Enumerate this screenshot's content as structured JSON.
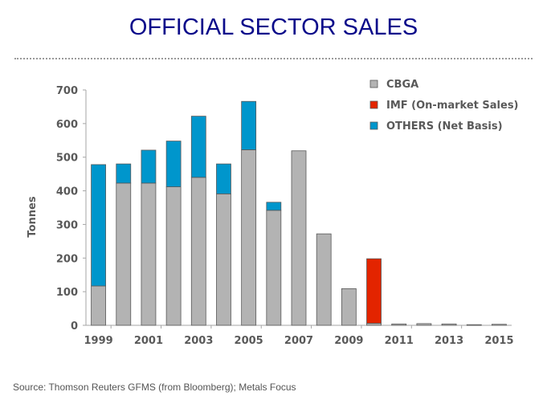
{
  "page": {
    "title": "OFFICIAL SECTOR SALES",
    "source": "Source: Thomson Reuters GFMS (from Bloomberg); Metals Focus"
  },
  "chart_data": {
    "type": "bar",
    "stacked": true,
    "title": "OFFICIAL SECTOR SALES",
    "xlabel": "",
    "ylabel": "Tonnes",
    "ylim": [
      0,
      700
    ],
    "yticks": [
      0,
      100,
      200,
      300,
      400,
      500,
      600,
      700
    ],
    "grid": false,
    "legend_position": "top-right",
    "categories": [
      "1999",
      "2000",
      "2001",
      "2002",
      "2003",
      "2004",
      "2005",
      "2006",
      "2007",
      "2008",
      "2009",
      "2010",
      "2011",
      "2012",
      "2013",
      "2014",
      "2015"
    ],
    "xtick_labels": [
      "1999",
      "",
      "2001",
      "",
      "2003",
      "",
      "2005",
      "",
      "2007",
      "",
      "2009",
      "",
      "2011",
      "",
      "2013",
      "",
      "2015"
    ],
    "series": [
      {
        "name": "CBGA",
        "color": "#b3b3b3",
        "values": [
          117,
          423,
          423,
          412,
          440,
          391,
          522,
          342,
          519,
          272,
          109,
          6,
          4,
          5,
          4,
          2,
          3
        ]
      },
      {
        "name": "IMF (On-market Sales)",
        "color": "#e32400",
        "values": [
          0,
          0,
          0,
          0,
          0,
          0,
          0,
          0,
          0,
          0,
          0,
          192,
          0,
          0,
          0,
          0,
          0
        ]
      },
      {
        "name": "OTHERS (Net Basis)",
        "color": "#0096cc",
        "values": [
          361,
          57,
          98,
          136,
          182,
          89,
          144,
          24,
          0,
          0,
          0,
          0,
          0,
          0,
          0,
          0,
          0
        ]
      }
    ]
  }
}
